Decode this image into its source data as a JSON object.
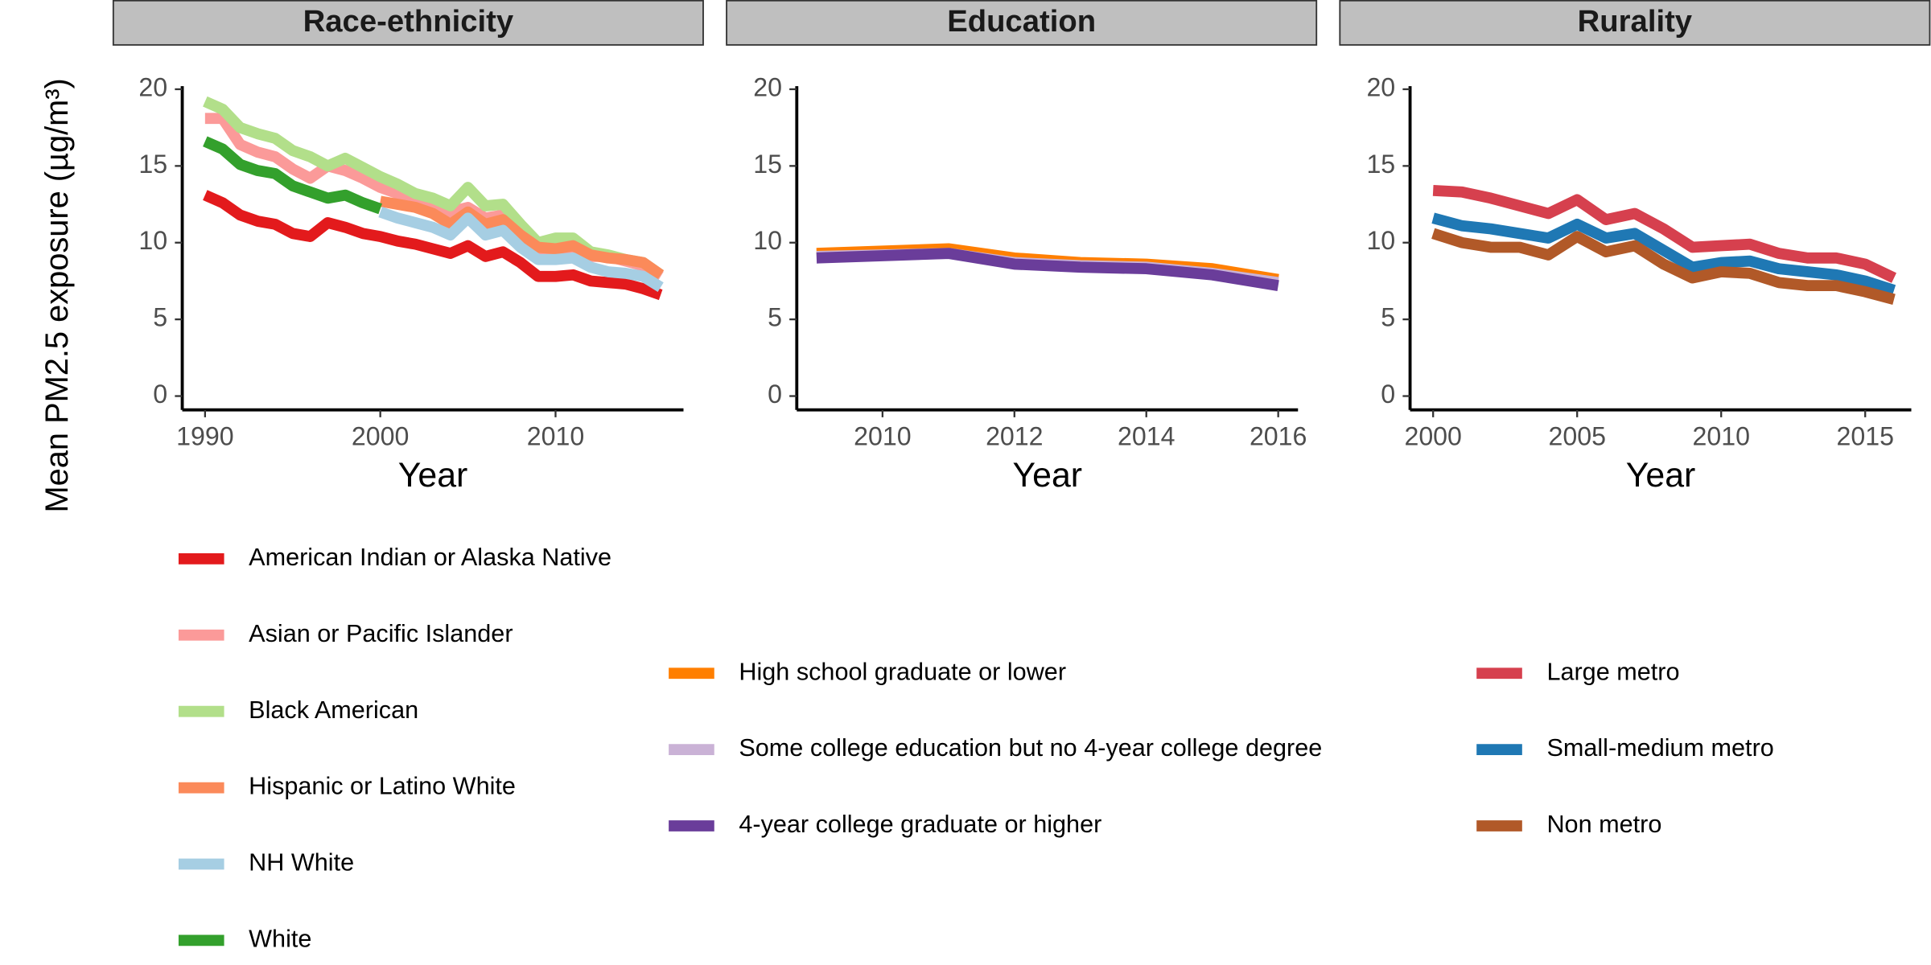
{
  "ylabel": "Mean PM2.5 exposure (µg/m³)",
  "chart_data": [
    {
      "type": "line",
      "title": "Race-ethnicity",
      "xlabel": "Year",
      "x": [
        1990,
        1991,
        1992,
        1993,
        1994,
        1995,
        1996,
        1997,
        1998,
        1999,
        2000,
        2001,
        2002,
        2003,
        2004,
        2005,
        2006,
        2007,
        2008,
        2009,
        2010,
        2011,
        2012,
        2013,
        2014,
        2015,
        2016
      ],
      "xlim": [
        1988.7,
        2017.3
      ],
      "xticks": [
        1990,
        2000,
        2010
      ],
      "ylim": [
        -0.9,
        20.2
      ],
      "yticks": [
        0,
        5,
        10,
        15,
        20
      ],
      "series": [
        {
          "name": "American Indian or Alaska Native",
          "color": "#e31a1c",
          "values": [
            13.1,
            12.6,
            11.8,
            11.4,
            11.2,
            10.6,
            10.4,
            11.3,
            11.0,
            10.6,
            10.4,
            10.1,
            9.9,
            9.6,
            9.3,
            9.8,
            9.1,
            9.4,
            8.7,
            7.8,
            7.8,
            7.9,
            7.5,
            7.4,
            7.3,
            7.0,
            6.6
          ]
        },
        {
          "name": "Asian or Pacific Islander",
          "color": "#fb9a99",
          "values": [
            18.1,
            18.1,
            16.4,
            15.9,
            15.6,
            14.8,
            14.2,
            15.0,
            14.7,
            14.2,
            13.6,
            13.2,
            13.0,
            12.6,
            12.0,
            12.3,
            11.6,
            11.8,
            10.6,
            9.3,
            9.4,
            9.7,
            9.1,
            9.1,
            8.8,
            8.5,
            7.8
          ]
        },
        {
          "name": "Black American",
          "color": "#b2df8a",
          "values": [
            19.2,
            18.7,
            17.5,
            17.1,
            16.8,
            16.0,
            15.6,
            15.0,
            15.5,
            14.9,
            14.3,
            13.8,
            13.2,
            12.9,
            12.4,
            13.6,
            12.4,
            12.5,
            11.2,
            10.0,
            10.3,
            10.3,
            9.4,
            9.2,
            8.9,
            8.7,
            7.9
          ]
        },
        {
          "name": "Hispanic or Latino White",
          "color": "#fb8a5a",
          "values": [
            null,
            null,
            null,
            null,
            null,
            null,
            null,
            null,
            null,
            null,
            12.7,
            12.5,
            12.3,
            11.9,
            11.2,
            12.0,
            11.2,
            11.5,
            10.5,
            9.7,
            9.6,
            9.8,
            9.2,
            9.0,
            8.9,
            8.7,
            7.9
          ]
        },
        {
          "name": "NH White",
          "color": "#a6cee3",
          "values": [
            null,
            null,
            null,
            null,
            null,
            null,
            null,
            null,
            null,
            null,
            12.0,
            11.6,
            11.3,
            11.0,
            10.5,
            11.6,
            10.5,
            10.8,
            9.7,
            8.9,
            8.9,
            9.0,
            8.4,
            8.1,
            8.0,
            7.8,
            7.1
          ]
        },
        {
          "name": "White",
          "color": "#33a02c",
          "values": [
            16.6,
            16.1,
            15.1,
            14.7,
            14.5,
            13.7,
            13.3,
            12.9,
            13.1,
            12.6,
            12.2,
            null,
            null,
            null,
            null,
            null,
            null,
            null,
            null,
            null,
            null,
            null,
            null,
            null,
            null,
            null,
            null
          ]
        }
      ]
    },
    {
      "type": "line",
      "title": "Education",
      "xlabel": "Year",
      "x": [
        2009,
        2010,
        2011,
        2012,
        2013,
        2014,
        2015,
        2016
      ],
      "xlim": [
        2008.7,
        2016.3
      ],
      "xticks": [
        2010,
        2012,
        2014,
        2016
      ],
      "ylim": [
        -0.9,
        20.2
      ],
      "yticks": [
        0,
        5,
        10,
        15,
        20
      ],
      "series": [
        {
          "name": "High school graduate or lower",
          "color": "#ff7f00",
          "values": [
            9.3,
            9.45,
            9.6,
            9.0,
            8.7,
            8.6,
            8.3,
            7.6
          ]
        },
        {
          "name": "Some college education but no 4-year college degree",
          "color": "#cab2d6",
          "values": [
            9.1,
            9.2,
            9.3,
            8.7,
            8.5,
            8.4,
            8.0,
            7.4
          ]
        },
        {
          "name": "4-year college graduate or higher",
          "color": "#6a3d9a",
          "values": [
            9.0,
            9.15,
            9.3,
            8.6,
            8.4,
            8.3,
            7.9,
            7.2
          ]
        }
      ]
    },
    {
      "type": "line",
      "title": "Rurality",
      "xlabel": "Year",
      "x": [
        2000,
        2001,
        2002,
        2003,
        2004,
        2005,
        2006,
        2007,
        2008,
        2009,
        2010,
        2011,
        2012,
        2013,
        2014,
        2015,
        2016
      ],
      "xlim": [
        1999.2,
        2016.6
      ],
      "xticks": [
        2000,
        2005,
        2010,
        2015
      ],
      "ylim": [
        -0.9,
        20.2
      ],
      "yticks": [
        0,
        5,
        10,
        15,
        20
      ],
      "series": [
        {
          "name": "Large metro",
          "color": "#d6404e",
          "values": [
            13.4,
            13.3,
            12.9,
            12.4,
            11.9,
            12.8,
            11.5,
            11.9,
            10.9,
            9.7,
            9.8,
            9.9,
            9.3,
            9.0,
            9.0,
            8.6,
            7.7
          ]
        },
        {
          "name": "Small-medium metro",
          "color": "#1f78b4",
          "values": [
            11.6,
            11.1,
            10.9,
            10.6,
            10.3,
            11.2,
            10.3,
            10.6,
            9.5,
            8.4,
            8.7,
            8.8,
            8.3,
            8.1,
            7.9,
            7.5,
            6.9
          ]
        },
        {
          "name": "Non metro",
          "color": "#b15928",
          "values": [
            10.6,
            10.0,
            9.7,
            9.7,
            9.2,
            10.4,
            9.4,
            9.8,
            8.6,
            7.7,
            8.1,
            8.0,
            7.4,
            7.2,
            7.2,
            6.8,
            6.3
          ]
        }
      ]
    }
  ]
}
